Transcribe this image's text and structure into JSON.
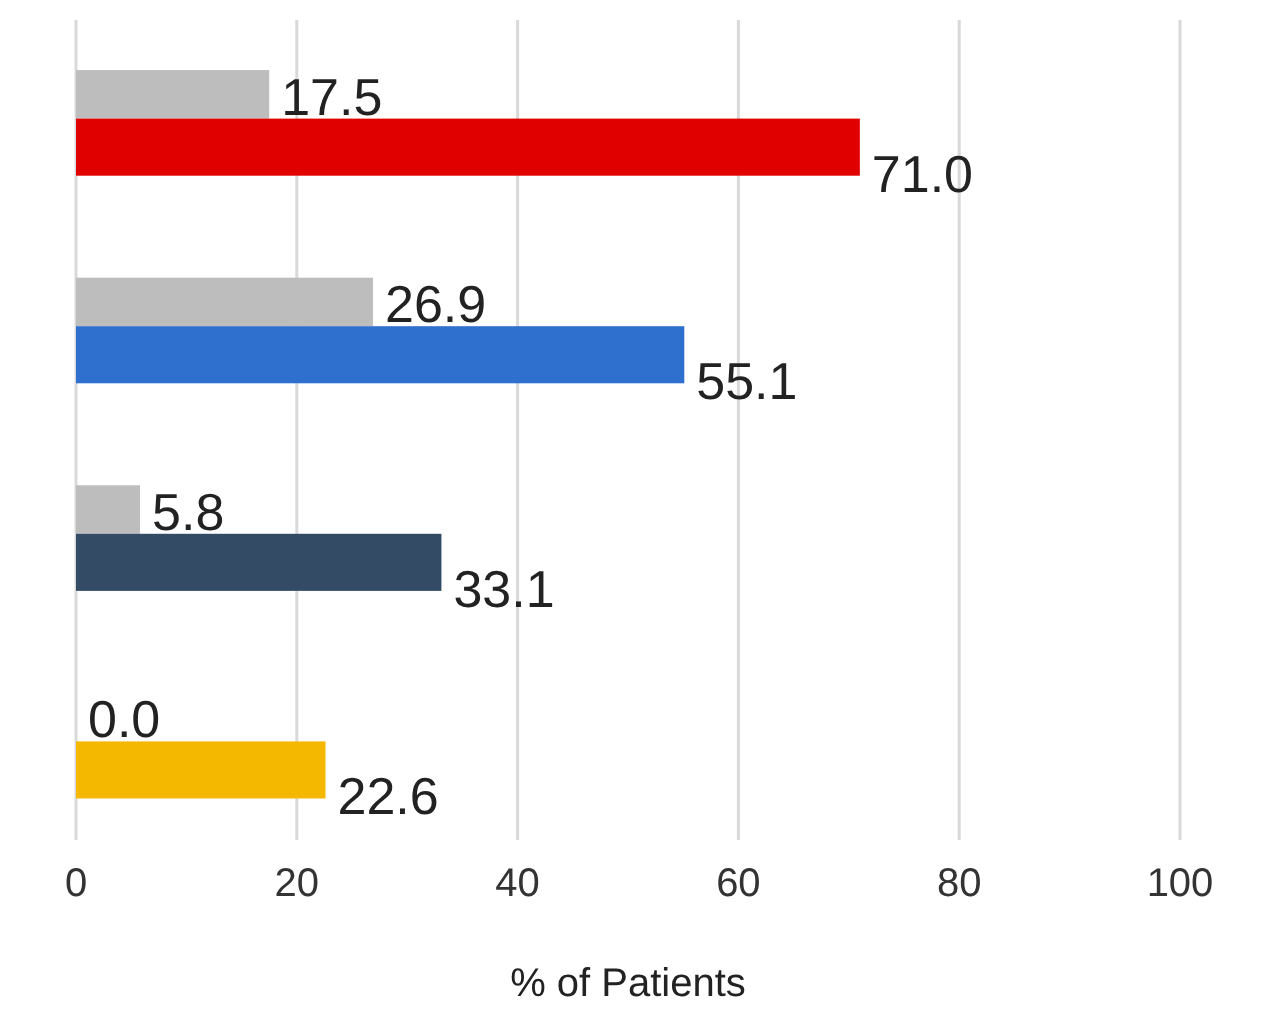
{
  "chart_data": {
    "type": "bar",
    "orientation": "horizontal",
    "xlabel": "% of Patients",
    "categories": [
      null,
      null,
      null,
      null
    ],
    "series": [
      {
        "color": "#bdbdbd",
        "values": [
          17.5,
          26.9,
          5.8,
          0.0
        ],
        "value_labels": [
          "17.5",
          "26.9",
          "5.8",
          "0.0"
        ]
      },
      {
        "colors": [
          "#e00000",
          "#2f6fce",
          "#344b66",
          "#f5b800"
        ],
        "values": [
          71.0,
          55.1,
          33.1,
          22.6
        ],
        "value_labels": [
          "71.0",
          "55.1",
          "33.1",
          "22.6"
        ]
      }
    ],
    "xlim": [
      0,
      100
    ],
    "xticks": [
      0,
      20,
      40,
      60,
      80,
      100
    ],
    "grid": "x"
  }
}
